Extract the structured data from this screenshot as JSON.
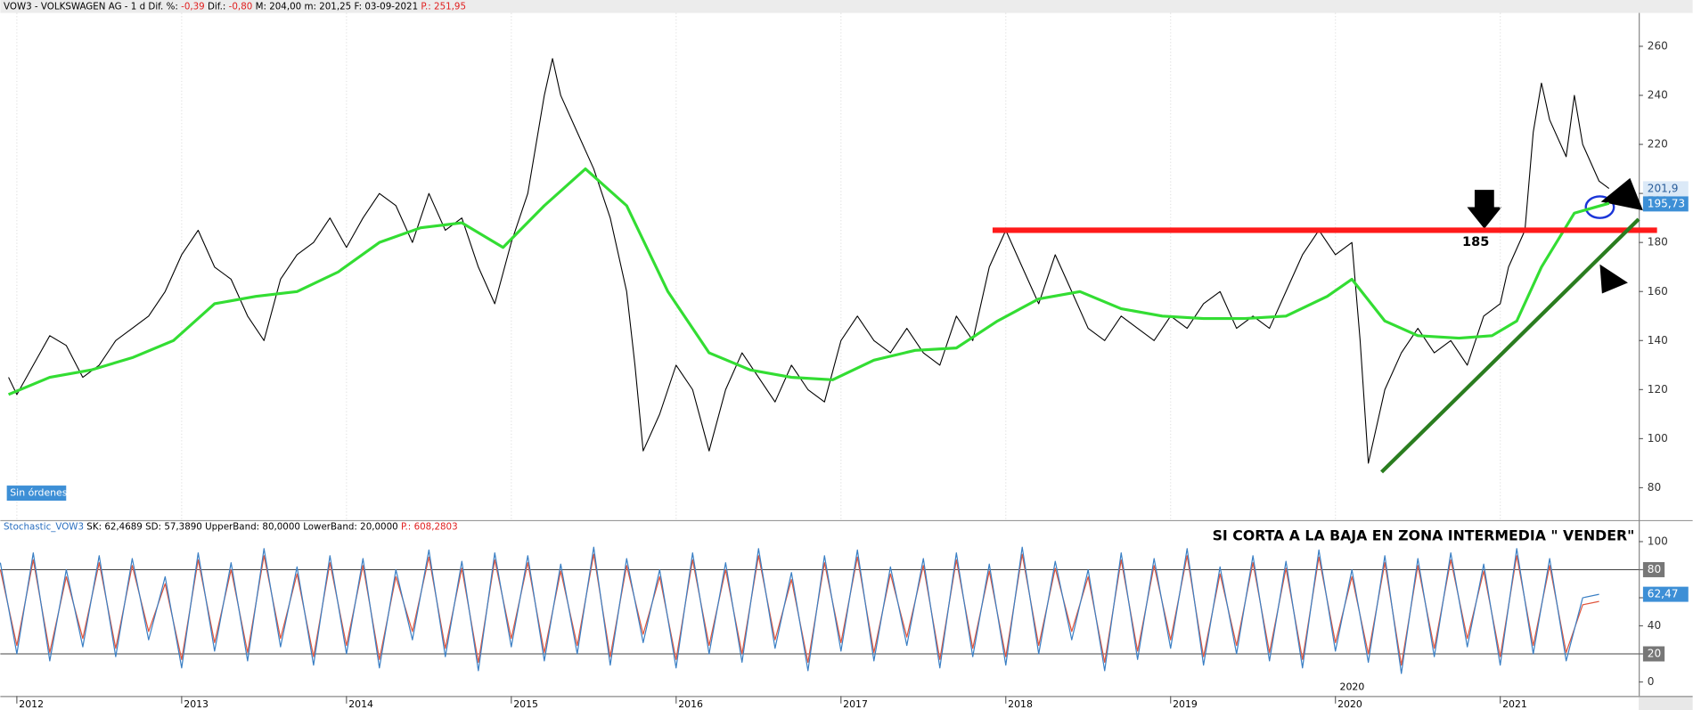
{
  "chart_data": [
    {
      "type": "line",
      "title": "VOW3 - VOLKSWAGEN AG - 1 d",
      "stats": [
        {
          "label": "Dif. %:",
          "value": "-0,39",
          "value_color": "#e02020"
        },
        {
          "label": "Dif.:",
          "value": "-0,80",
          "value_color": "#e02020"
        },
        {
          "label": "M:",
          "value": "204,00",
          "value_color": "#000000"
        },
        {
          "label": "m:",
          "value": "201,25",
          "value_color": "#000000"
        },
        {
          "label": "F:",
          "value": "03-09-2021",
          "value_color": "#000000"
        },
        {
          "label": "P.:",
          "value": "251,95",
          "value_color": "#e02020",
          "label_color": "#e02020"
        }
      ],
      "badge": "Sin órdenes",
      "xlim": [
        2011.9,
        2021.84
      ],
      "xticks": [
        2012,
        2013,
        2014,
        2015,
        2016,
        2017,
        2018,
        2019,
        2020,
        2021
      ],
      "ylim": [
        66.8,
        273.6
      ],
      "yticks": [
        80,
        100,
        120,
        140,
        160,
        180,
        200,
        220,
        240,
        260
      ],
      "grid": true,
      "series": [
        {
          "color": "#000000",
          "x": [
            2011.95,
            2012.0,
            2012.1,
            2012.2,
            2012.3,
            2012.4,
            2012.5,
            2012.6,
            2012.7,
            2012.8,
            2012.9,
            2013.0,
            2013.1,
            2013.2,
            2013.3,
            2013.4,
            2013.5,
            2013.6,
            2013.7,
            2013.8,
            2013.9,
            2014.0,
            2014.1,
            2014.2,
            2014.3,
            2014.4,
            2014.5,
            2014.6,
            2014.7,
            2014.8,
            2014.9,
            2015.0,
            2015.1,
            2015.2,
            2015.25,
            2015.3,
            2015.4,
            2015.5,
            2015.6,
            2015.7,
            2015.75,
            2015.8,
            2015.9,
            2016.0,
            2016.1,
            2016.2,
            2016.3,
            2016.4,
            2016.5,
            2016.6,
            2016.7,
            2016.8,
            2016.9,
            2017.0,
            2017.1,
            2017.2,
            2017.3,
            2017.4,
            2017.5,
            2017.6,
            2017.7,
            2017.8,
            2017.9,
            2018.0,
            2018.1,
            2018.2,
            2018.3,
            2018.4,
            2018.5,
            2018.6,
            2018.7,
            2018.8,
            2018.9,
            2019.0,
            2019.1,
            2019.2,
            2019.3,
            2019.4,
            2019.5,
            2019.6,
            2019.7,
            2019.8,
            2019.9,
            2020.0,
            2020.1,
            2020.15,
            2020.2,
            2020.3,
            2020.4,
            2020.5,
            2020.6,
            2020.7,
            2020.8,
            2020.9,
            2021.0,
            2021.05,
            2021.15,
            2021.2,
            2021.25,
            2021.3,
            2021.4,
            2021.45,
            2021.5,
            2021.6,
            2021.66
          ],
          "values": [
            125,
            118,
            130,
            142,
            138,
            125,
            130,
            140,
            145,
            150,
            160,
            175,
            185,
            170,
            165,
            150,
            140,
            165,
            175,
            180,
            190,
            178,
            190,
            200,
            195,
            180,
            200,
            185,
            190,
            170,
            155,
            180,
            200,
            240,
            255,
            240,
            225,
            210,
            190,
            160,
            130,
            95,
            110,
            130,
            120,
            95,
            120,
            135,
            125,
            115,
            130,
            120,
            115,
            140,
            150,
            140,
            135,
            145,
            135,
            130,
            150,
            140,
            170,
            185,
            170,
            155,
            175,
            160,
            145,
            140,
            150,
            145,
            140,
            150,
            145,
            155,
            160,
            145,
            150,
            145,
            160,
            175,
            185,
            175,
            180,
            140,
            90,
            120,
            135,
            145,
            135,
            140,
            130,
            150,
            155,
            170,
            185,
            225,
            245,
            230,
            215,
            240,
            220,
            205,
            202
          ]
        },
        {
          "color": "#33dd33",
          "x": [
            2011.95,
            2012.2,
            2012.45,
            2012.7,
            2012.95,
            2013.2,
            2013.45,
            2013.7,
            2013.95,
            2014.2,
            2014.45,
            2014.7,
            2014.95,
            2015.2,
            2015.45,
            2015.7,
            2015.95,
            2016.2,
            2016.45,
            2016.7,
            2016.95,
            2017.2,
            2017.45,
            2017.7,
            2017.95,
            2018.2,
            2018.45,
            2018.7,
            2018.95,
            2019.2,
            2019.45,
            2019.7,
            2019.95,
            2020.1,
            2020.3,
            2020.5,
            2020.75,
            2020.95,
            2021.1,
            2021.25,
            2021.45,
            2021.66
          ],
          "values": [
            118,
            125,
            128,
            133,
            140,
            155,
            158,
            160,
            168,
            180,
            186,
            188,
            178,
            195,
            210,
            195,
            160,
            135,
            128,
            125,
            124,
            132,
            136,
            137,
            148,
            157,
            160,
            153,
            150,
            149,
            149,
            150,
            158,
            165,
            148,
            142,
            141,
            142,
            148,
            170,
            192,
            196
          ]
        }
      ],
      "hline": {
        "value": 185,
        "label": "185",
        "color": "#ff1a1a",
        "x_start": 2017.92
      },
      "trendline": {
        "color": "#2a7d1f",
        "x": [
          2020.28,
          2021.84
        ],
        "values": [
          86.4,
          189.5
        ]
      },
      "tags": [
        {
          "value": 201.9,
          "label": "201,9",
          "bg": "#dbe9f7",
          "fg": "#2a5d9a"
        },
        {
          "value": 195.73,
          "label": "195,73",
          "bg": "#3d8fd6",
          "fg": "#ffffff"
        }
      ]
    },
    {
      "type": "line",
      "title": "Stochastic_VOW3",
      "stats": [
        {
          "label": "SK:",
          "value": "62,4689",
          "value_color": "#000000"
        },
        {
          "label": "SD:",
          "value": "57,3890",
          "value_color": "#000000"
        },
        {
          "label": "UpperBand:",
          "value": "80,0000",
          "value_color": "#000000"
        },
        {
          "label": "LowerBand:",
          "value": "20,0000",
          "value_color": "#000000"
        },
        {
          "label": "P.:",
          "value": "608,2803",
          "value_color": "#e02020",
          "label_color": "#e02020"
        }
      ],
      "annotation": "SI CORTA A LA BAJA EN ZONA INTERMEDIA \" VENDER\"",
      "marker_label": "2020",
      "xlim": [
        2011.9,
        2021.84
      ],
      "xticks": [
        2012,
        2013,
        2014,
        2015,
        2016,
        2017,
        2018,
        2019,
        2020,
        2021
      ],
      "ylim": [
        -10,
        113.8
      ],
      "yticks": [
        0,
        20,
        40,
        60,
        80,
        100
      ],
      "bands": [
        80,
        20
      ],
      "x": [
        2011.9,
        2012.0,
        2012.1,
        2012.2,
        2012.3,
        2012.4,
        2012.5,
        2012.6,
        2012.7,
        2012.8,
        2012.9,
        2013.0,
        2013.1,
        2013.2,
        2013.3,
        2013.4,
        2013.5,
        2013.6,
        2013.7,
        2013.8,
        2013.9,
        2014.0,
        2014.1,
        2014.2,
        2014.3,
        2014.4,
        2014.5,
        2014.6,
        2014.7,
        2014.8,
        2014.9,
        2015.0,
        2015.1,
        2015.2,
        2015.3,
        2015.4,
        2015.5,
        2015.6,
        2015.7,
        2015.8,
        2015.9,
        2016.0,
        2016.1,
        2016.2,
        2016.3,
        2016.4,
        2016.5,
        2016.6,
        2016.7,
        2016.8,
        2016.9,
        2017.0,
        2017.1,
        2017.2,
        2017.3,
        2017.4,
        2017.5,
        2017.6,
        2017.7,
        2017.8,
        2017.9,
        2018.0,
        2018.1,
        2018.2,
        2018.3,
        2018.4,
        2018.5,
        2018.6,
        2018.7,
        2018.8,
        2018.9,
        2019.0,
        2019.1,
        2019.2,
        2019.3,
        2019.4,
        2019.5,
        2019.6,
        2019.7,
        2019.8,
        2019.9,
        2020.0,
        2020.1,
        2020.2,
        2020.3,
        2020.4,
        2020.5,
        2020.6,
        2020.7,
        2020.8,
        2020.9,
        2021.0,
        2021.1,
        2021.2,
        2021.3,
        2021.4,
        2021.5,
        2021.6
      ],
      "series": [
        {
          "color": "#e0553c",
          "values": [
            80,
            26,
            87,
            21,
            75,
            31,
            85,
            24,
            83,
            36,
            70,
            16,
            87,
            28,
            80,
            21,
            90,
            31,
            77,
            18,
            85,
            26,
            83,
            16,
            75,
            36,
            89,
            24,
            81,
            14,
            87,
            31,
            85,
            21,
            79,
            26,
            91,
            18,
            83,
            34,
            75,
            16,
            87,
            26,
            80,
            20,
            90,
            30,
            73,
            14,
            85,
            28,
            89,
            21,
            77,
            32,
            83,
            16,
            87,
            24,
            79,
            18,
            91,
            26,
            81,
            36,
            75,
            14,
            87,
            22,
            83,
            30,
            90,
            18,
            77,
            26,
            85,
            21,
            81,
            16,
            89,
            28,
            75,
            20,
            85,
            12,
            83,
            24,
            87,
            31,
            79,
            18,
            90,
            26,
            83,
            21,
            55,
            57.39
          ]
        },
        {
          "color": "#3a7fc4",
          "values": [
            85,
            20,
            92,
            15,
            80,
            25,
            90,
            18,
            88,
            30,
            75,
            10,
            92,
            22,
            85,
            15,
            95,
            25,
            82,
            12,
            90,
            20,
            88,
            10,
            80,
            30,
            94,
            18,
            86,
            8,
            92,
            25,
            90,
            15,
            84,
            20,
            96,
            12,
            88,
            28,
            80,
            10,
            92,
            20,
            85,
            14,
            95,
            24,
            78,
            8,
            90,
            22,
            94,
            15,
            82,
            26,
            88,
            10,
            92,
            18,
            84,
            12,
            96,
            20,
            86,
            30,
            80,
            8,
            92,
            16,
            88,
            24,
            95,
            12,
            82,
            20,
            90,
            15,
            86,
            10,
            94,
            22,
            80,
            14,
            90,
            6,
            88,
            18,
            92,
            25,
            84,
            12,
            95,
            20,
            88,
            15,
            60,
            62.47
          ]
        }
      ],
      "tags": [
        {
          "value": 62.47,
          "label": "62,47",
          "bg": "#3d8fd6",
          "fg": "#ffffff"
        }
      ]
    }
  ]
}
